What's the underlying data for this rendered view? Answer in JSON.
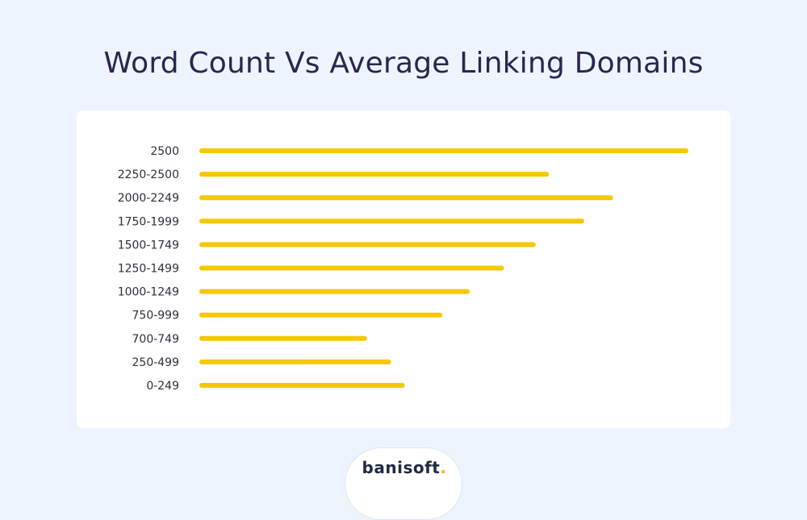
{
  "chart_data": {
    "type": "bar",
    "orientation": "horizontal",
    "title": "Word Count Vs Average Linking Domains",
    "xlabel": "",
    "ylabel": "",
    "xlim": [
      0,
      100
    ],
    "grid": false,
    "bar_color": "#f5c800",
    "categories": [
      "2500",
      "2250-2500",
      "2000-2249",
      "1750-1999",
      "1500-1749",
      "1250-1499",
      "1000-1249",
      "750-999",
      "700-749",
      "250-499",
      "0-249"
    ],
    "values": [
      100,
      71.5,
      84.6,
      78.7,
      68.8,
      62.3,
      55.3,
      49.7,
      34.3,
      39.2,
      42.0
    ]
  },
  "colors": {
    "background": "#eef4fe",
    "card": "#ffffff",
    "title": "#2b2550",
    "bar": "#f5c800",
    "logo_accent": "#f5b800"
  },
  "logo": {
    "text": "banisoft"
  }
}
